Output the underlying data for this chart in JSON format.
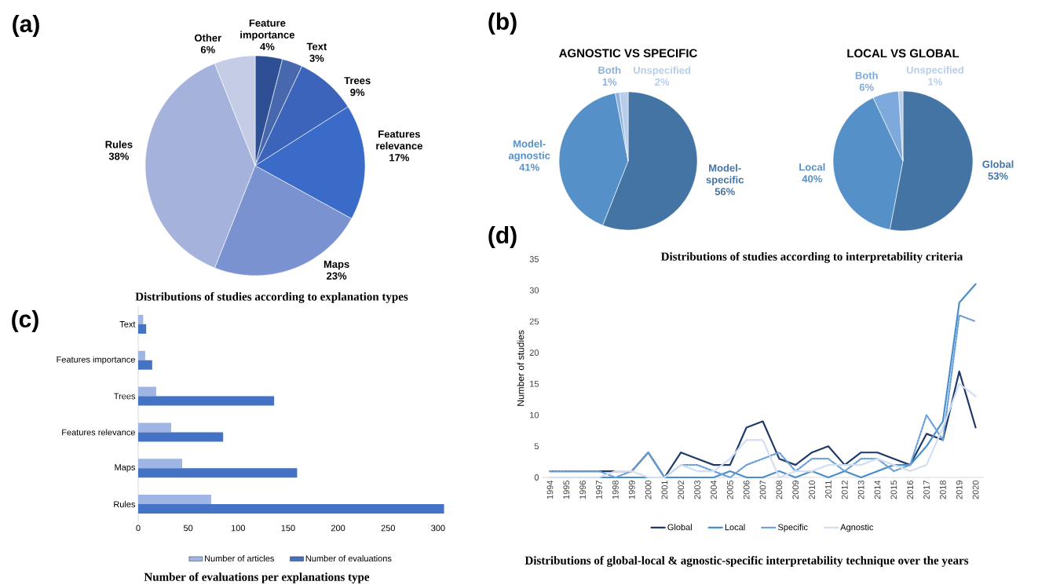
{
  "chart_data": [
    {
      "type": "pie",
      "categories": [
        "Feature importance",
        "Text",
        "Trees",
        "Features relevance",
        "Maps",
        "Rules",
        "Other"
      ],
      "values": [
        4,
        3,
        9,
        17,
        23,
        38,
        6
      ],
      "value_labels": [
        "4%",
        "3%",
        "9%",
        "17%",
        "23%",
        "38%",
        "6%"
      ],
      "colors": [
        "#2e4f93",
        "#4868ad",
        "#3c64bb",
        "#3a6bc8",
        "#7b92d0",
        "#a5b3dc",
        "#c4cce6"
      ],
      "annotations": [
        "(a)",
        "Distributions of studies according to explanation types"
      ]
    },
    {
      "type": "pie",
      "title": "AGNOSTIC VS SPECIFIC",
      "categories": [
        "Model-specific",
        "Model-agnostic",
        "Both",
        "Unspecified"
      ],
      "values": [
        56,
        41,
        1,
        2
      ],
      "value_labels": [
        "56%",
        "41%",
        "1%",
        "2%"
      ],
      "colors": [
        "#4474a3",
        "#5591c8",
        "#8db0dd",
        "#b8cdea"
      ],
      "annotations": [
        "(b)",
        "Distributions of studies according to interpretability criteria"
      ]
    },
    {
      "type": "pie",
      "title": "LOCAL VS GLOBAL",
      "categories": [
        "Global",
        "Local",
        "Both",
        "Unspecified"
      ],
      "values": [
        53,
        40,
        6,
        1
      ],
      "value_labels": [
        "53%",
        "40%",
        "6%",
        "1%"
      ],
      "colors": [
        "#4474a3",
        "#5591c8",
        "#7ea9dd",
        "#b8cdea"
      ]
    },
    {
      "type": "bar",
      "orientation": "horizontal",
      "categories": [
        "Text",
        "Features importance",
        "Trees",
        "Features relevance",
        "Maps",
        "Rules"
      ],
      "series": [
        {
          "name": "Number of articles",
          "color": "#9fb5e3",
          "values": [
            5,
            7,
            18,
            33,
            44,
            73
          ]
        },
        {
          "name": "Number of evaluations",
          "color": "#4472c4",
          "values": [
            8,
            14,
            136,
            85,
            159,
            306
          ]
        }
      ],
      "xlim": [
        0,
        306
      ],
      "xticks": [
        0,
        50,
        100,
        150,
        200,
        250,
        300
      ],
      "legend": "bottom",
      "annotations": [
        "(c)",
        "Number of evaluations per explanations type"
      ]
    },
    {
      "type": "line",
      "ylabel": "Number of studies",
      "categories": [
        "1994",
        "1995",
        "1996",
        "1997",
        "1998",
        "1999",
        "2000",
        "2001",
        "2002",
        "2003",
        "2004",
        "2005",
        "2006",
        "2007",
        "2008",
        "2009",
        "2010",
        "2011",
        "2012",
        "2013",
        "2014",
        "2015",
        "2016",
        "2017",
        "2018",
        "2019",
        "2020"
      ],
      "series": [
        {
          "name": "Global",
          "color": "#1f3a68",
          "line_style": "solid",
          "values": [
            1,
            1,
            1,
            1,
            1,
            1,
            4,
            0,
            4,
            3,
            2,
            2,
            8,
            9,
            3,
            2,
            4,
            5,
            2,
            4,
            4,
            3,
            2,
            7,
            6,
            17,
            8
          ]
        },
        {
          "name": "Local",
          "color": "#4a8fcc",
          "line_style": "solid",
          "values": [
            null,
            null,
            null,
            0,
            0,
            0,
            0,
            0,
            0,
            0,
            0,
            1,
            0,
            0,
            1,
            0,
            1,
            0,
            1,
            0,
            1,
            2,
            2,
            5,
            9,
            28,
            31
          ]
        },
        {
          "name": "Specific",
          "color": "#6a9fd8",
          "line_style": "dotted",
          "values": [
            1,
            1,
            1,
            1,
            0,
            1,
            4,
            0,
            2,
            2,
            1,
            0,
            2,
            3,
            4,
            1,
            3,
            3,
            1,
            3,
            3,
            1,
            2,
            10,
            6,
            26,
            25
          ]
        },
        {
          "name": "Agnostic",
          "color": "#d3dff0",
          "line_style": "solid",
          "values": [
            0,
            0,
            0,
            0,
            1,
            1,
            0,
            0,
            2,
            1,
            1,
            3,
            6,
            6,
            0,
            1,
            1,
            2,
            2,
            2,
            3,
            2,
            1,
            2,
            8,
            15,
            13
          ]
        }
      ],
      "ylim": [
        0,
        35
      ],
      "yticks": [
        0,
        5,
        10,
        15,
        20,
        25,
        30,
        35
      ],
      "legend": "bottom",
      "annotations": [
        "(d)",
        "Distributions of global-local & agnostic-specific interpretability technique over the years"
      ]
    }
  ]
}
